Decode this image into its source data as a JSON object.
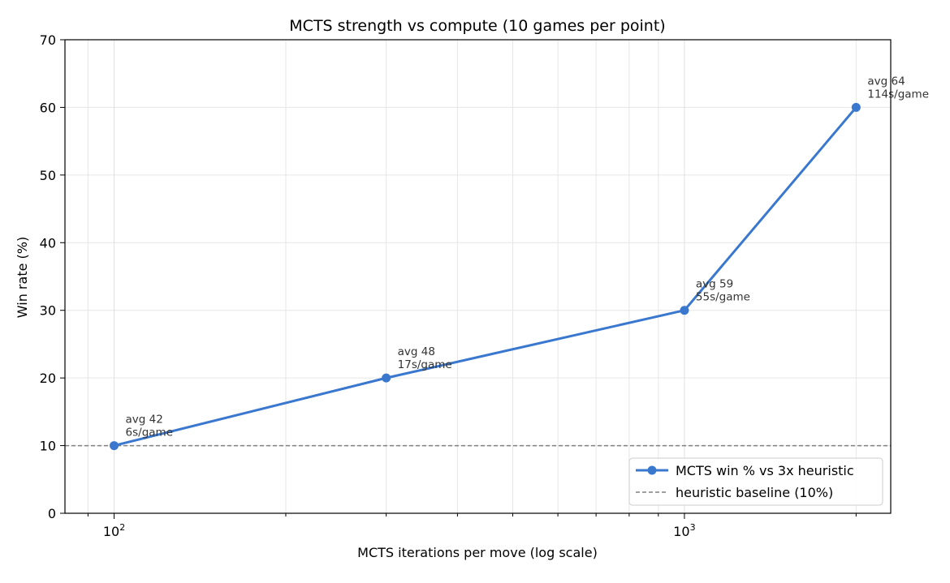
{
  "chart_data": {
    "type": "line",
    "title": "MCTS strength vs compute (10 games per point)",
    "xlabel": "MCTS iterations per move (log scale)",
    "ylabel": "Win rate (%)",
    "xscale": "log",
    "xlim": [
      82,
      2300
    ],
    "ylim": [
      0,
      70
    ],
    "yticks": [
      0,
      10,
      20,
      30,
      40,
      50,
      60,
      70
    ],
    "xticks_major": [
      {
        "value": 100,
        "base": "10",
        "exp": "2"
      },
      {
        "value": 1000,
        "base": "10",
        "exp": "3"
      }
    ],
    "xticks_minor": [
      90,
      200,
      300,
      400,
      500,
      600,
      700,
      800,
      900,
      2000
    ],
    "grid": true,
    "legend_position": "lower right",
    "series": [
      {
        "name": "MCTS win % vs 3x heuristic",
        "color": "#3a78cf",
        "marker": "circle",
        "x": [
          100,
          300,
          1000,
          2000
        ],
        "y": [
          10,
          20,
          30,
          60
        ]
      }
    ],
    "reference_lines": [
      {
        "name": "heuristic baseline (10%)",
        "y": 10,
        "style": "dashed",
        "color": "#808080"
      }
    ],
    "annotations": [
      {
        "x": 100,
        "y": 10,
        "lines": [
          "avg 42",
          "6s/game"
        ]
      },
      {
        "x": 300,
        "y": 20,
        "lines": [
          "avg 48",
          "17s/game"
        ]
      },
      {
        "x": 1000,
        "y": 30,
        "lines": [
          "avg 59",
          "55s/game"
        ]
      },
      {
        "x": 2000,
        "y": 60,
        "lines": [
          "avg 64",
          "114s/game"
        ]
      }
    ]
  }
}
